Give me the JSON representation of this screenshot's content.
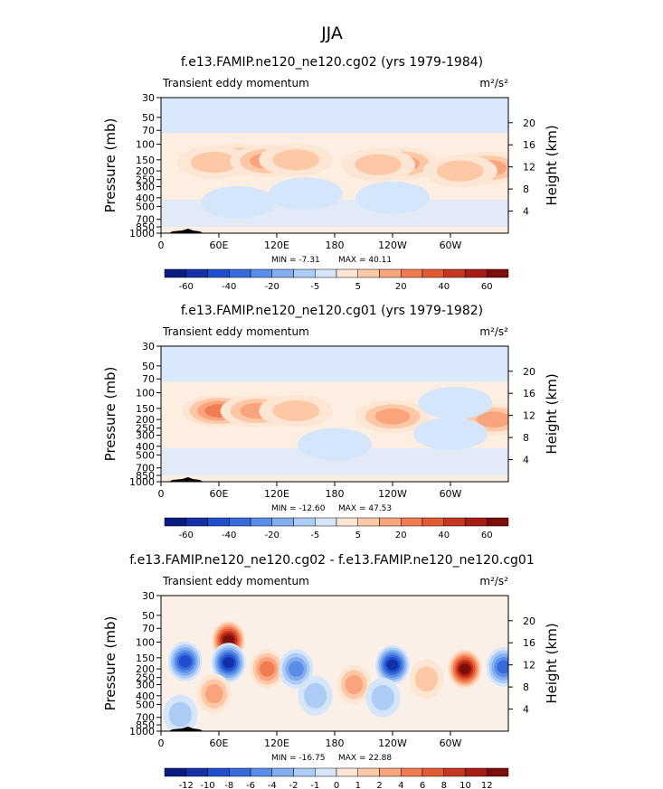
{
  "figure_title": "JJA",
  "chart_data": [
    {
      "type": "heatmap",
      "title": "f.e13.FAMIP.ne120_ne120.cg02 (yrs 1979-1984)",
      "left_label": "Transient eddy momentum",
      "units": "m²/s²",
      "ylabel": "Pressure (mb)",
      "ylabel_right": "Height (km)",
      "x_ticks": [
        "0",
        "60E",
        "120E",
        "180",
        "120W",
        "60W"
      ],
      "x_tick_values": [
        0,
        60,
        120,
        180,
        240,
        300
      ],
      "xlim": [
        0,
        360
      ],
      "p_ticks": [
        "30",
        "50",
        "70",
        "100",
        "150",
        "200",
        "250",
        "300",
        "400",
        "500",
        "700",
        "850",
        "1000"
      ],
      "p_tick_values": [
        30,
        50,
        70,
        100,
        150,
        200,
        250,
        300,
        400,
        500,
        700,
        850,
        1000
      ],
      "ylim": [
        1000,
        30
      ],
      "height_ticks": [
        "4",
        "8",
        "12",
        "16",
        "20"
      ],
      "height_tick_values": [
        4,
        8,
        12,
        16,
        20
      ],
      "min_label": "MIN = -7.31",
      "max_label": "MAX = 40.11",
      "levels": [
        -70,
        -60,
        -50,
        -40,
        -30,
        -20,
        -10,
        -5,
        5,
        10,
        20,
        30,
        40,
        50,
        60,
        70
      ],
      "colorbar_labels": [
        "-60",
        "-40",
        "-20",
        "-5",
        "5",
        "20",
        "40",
        "60"
      ],
      "features": [
        {
          "lon": 80,
          "p": 150,
          "value": 28
        },
        {
          "lon": 55,
          "p": 160,
          "value": 18
        },
        {
          "lon": 110,
          "p": 155,
          "value": 20
        },
        {
          "lon": 140,
          "p": 150,
          "value": 17
        },
        {
          "lon": 250,
          "p": 165,
          "value": 20
        },
        {
          "lon": 225,
          "p": 170,
          "value": 12
        },
        {
          "lon": 340,
          "p": 185,
          "value": 24
        },
        {
          "lon": 310,
          "p": 200,
          "value": 14
        },
        {
          "lon": 150,
          "p": 360,
          "value": -6
        },
        {
          "lon": 240,
          "p": 400,
          "value": -6
        },
        {
          "lon": 80,
          "p": 450,
          "value": -5
        }
      ]
    },
    {
      "type": "heatmap",
      "title": "f.e13.FAMIP.ne120_ne120.cg01 (yrs 1979-1982)",
      "left_label": "Transient eddy momentum",
      "units": "m²/s²",
      "ylabel": "Pressure (mb)",
      "ylabel_right": "Height (km)",
      "x_ticks": [
        "0",
        "60E",
        "120E",
        "180",
        "120W",
        "60W"
      ],
      "x_tick_values": [
        0,
        60,
        120,
        180,
        240,
        300
      ],
      "xlim": [
        0,
        360
      ],
      "p_ticks": [
        "30",
        "50",
        "70",
        "100",
        "150",
        "200",
        "250",
        "300",
        "400",
        "500",
        "700",
        "850",
        "1000"
      ],
      "p_tick_values": [
        30,
        50,
        70,
        100,
        150,
        200,
        250,
        300,
        400,
        500,
        700,
        850,
        1000
      ],
      "ylim": [
        1000,
        30
      ],
      "height_ticks": [
        "4",
        "8",
        "12",
        "16",
        "20"
      ],
      "height_tick_values": [
        4,
        8,
        12,
        16,
        20
      ],
      "min_label": "MIN = -12.60",
      "max_label": "MAX = 47.53",
      "levels": [
        -70,
        -60,
        -50,
        -40,
        -30,
        -20,
        -10,
        -5,
        5,
        10,
        20,
        30,
        40,
        50,
        60,
        70
      ],
      "colorbar_labels": [
        "-60",
        "-40",
        "-20",
        "-5",
        "5",
        "20",
        "40",
        "60"
      ],
      "features": [
        {
          "lon": 60,
          "p": 160,
          "value": 32
        },
        {
          "lon": 100,
          "p": 160,
          "value": 26
        },
        {
          "lon": 140,
          "p": 160,
          "value": 18
        },
        {
          "lon": 240,
          "p": 185,
          "value": 25
        },
        {
          "lon": 345,
          "p": 200,
          "value": 22
        },
        {
          "lon": 305,
          "p": 130,
          "value": -6
        },
        {
          "lon": 300,
          "p": 290,
          "value": -7
        },
        {
          "lon": 180,
          "p": 380,
          "value": -5
        }
      ]
    },
    {
      "type": "heatmap",
      "title": "f.e13.FAMIP.ne120_ne120.cg02 - f.e13.FAMIP.ne120_ne120.cg01",
      "left_label": "Transient eddy momentum",
      "units": "m²/s²",
      "ylabel": "Pressure (mb)",
      "ylabel_right": "Height (km)",
      "x_ticks": [
        "0",
        "60E",
        "120E",
        "180",
        "120W",
        "60W"
      ],
      "x_tick_values": [
        0,
        60,
        120,
        180,
        240,
        300
      ],
      "xlim": [
        0,
        360
      ],
      "p_ticks": [
        "30",
        "50",
        "70",
        "100",
        "150",
        "200",
        "250",
        "300",
        "400",
        "500",
        "700",
        "850",
        "1000"
      ],
      "p_tick_values": [
        30,
        50,
        70,
        100,
        150,
        200,
        250,
        300,
        400,
        500,
        700,
        850,
        1000
      ],
      "ylim": [
        1000,
        30
      ],
      "height_ticks": [
        "4",
        "8",
        "12",
        "16",
        "20"
      ],
      "height_tick_values": [
        4,
        8,
        12,
        16,
        20
      ],
      "min_label": "MIN = -16.75",
      "max_label": "MAX = 22.88",
      "levels": [
        -14,
        -12,
        -10,
        -8,
        -6,
        -4,
        -2,
        -1,
        1,
        2,
        4,
        6,
        8,
        10,
        12,
        14
      ],
      "colorbar_labels": [
        "-12",
        "-10",
        "-8",
        "-6",
        "-4",
        "-2",
        "-1",
        "0",
        "1",
        "2",
        "4",
        "6",
        "8",
        "10",
        "12"
      ],
      "features": [
        {
          "lon": 70,
          "p": 95,
          "value": 16
        },
        {
          "lon": 315,
          "p": 200,
          "value": 20
        },
        {
          "lon": 110,
          "p": 200,
          "value": 7
        },
        {
          "lon": 25,
          "p": 165,
          "value": -10
        },
        {
          "lon": 70,
          "p": 170,
          "value": -12
        },
        {
          "lon": 240,
          "p": 180,
          "value": -12
        },
        {
          "lon": 355,
          "p": 190,
          "value": -9
        },
        {
          "lon": 140,
          "p": 200,
          "value": -6
        },
        {
          "lon": 160,
          "p": 400,
          "value": -3
        },
        {
          "lon": 200,
          "p": 300,
          "value": 4
        },
        {
          "lon": 55,
          "p": 380,
          "value": 4
        },
        {
          "lon": 275,
          "p": 260,
          "value": 3
        },
        {
          "lon": 230,
          "p": 420,
          "value": -3
        },
        {
          "lon": 20,
          "p": 650,
          "value": -2
        }
      ]
    }
  ],
  "colors": {
    "positive": [
      "#fde6d3",
      "#fcc8a6",
      "#f9a47d",
      "#f07d52",
      "#e35b35",
      "#c8361f",
      "#a51d14",
      "#7a0f0a"
    ],
    "negative": [
      "#d6e6fa",
      "#adccf5",
      "#83adef",
      "#5a8de8",
      "#386bdc",
      "#214ecc",
      "#1330a8",
      "#0a1a80"
    ],
    "neutral": "#fdeee2",
    "background_negative": "#d9e8fb",
    "topography": "#000000"
  }
}
